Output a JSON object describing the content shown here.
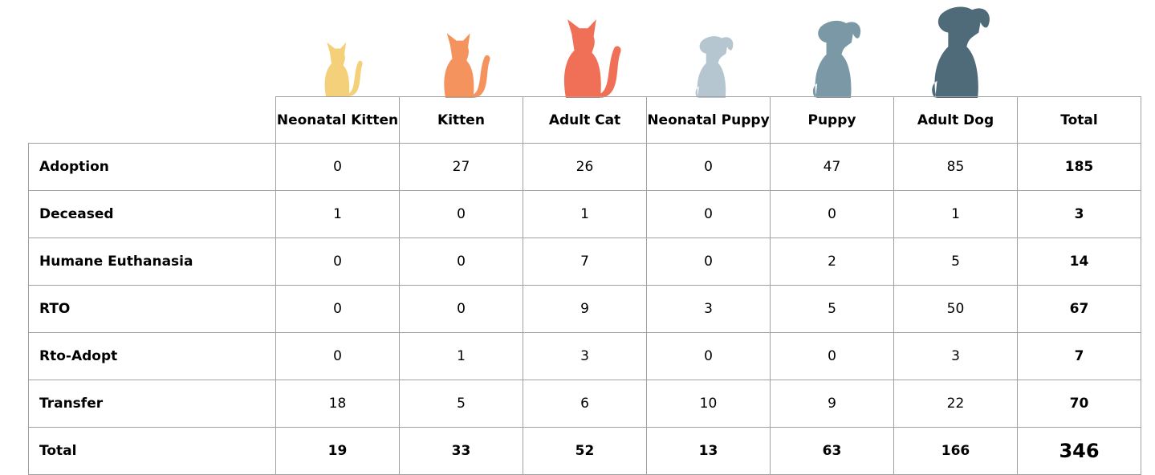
{
  "table": {
    "headers": [
      "Neonatal Kitten",
      "Kitten",
      "Adult Cat",
      "Neonatal Puppy",
      "Puppy",
      "Adult Dog",
      "Total"
    ],
    "rows": [
      {
        "label": "Adoption",
        "values": [
          0,
          27,
          26,
          0,
          47,
          85
        ],
        "total": 185
      },
      {
        "label": "Deceased",
        "values": [
          1,
          0,
          1,
          0,
          0,
          1
        ],
        "total": 3
      },
      {
        "label": "Humane Euthanasia",
        "values": [
          0,
          0,
          7,
          0,
          2,
          5
        ],
        "total": 14
      },
      {
        "label": "RTO",
        "values": [
          0,
          0,
          9,
          3,
          5,
          50
        ],
        "total": 67
      },
      {
        "label": "Rto-Adopt",
        "values": [
          0,
          1,
          3,
          0,
          0,
          3
        ],
        "total": 7
      },
      {
        "label": "Transfer",
        "values": [
          18,
          5,
          6,
          10,
          9,
          22
        ],
        "total": 70
      }
    ],
    "totals": {
      "label": "Total",
      "values": [
        19,
        33,
        52,
        13,
        63,
        166
      ],
      "total": 346
    }
  }
}
